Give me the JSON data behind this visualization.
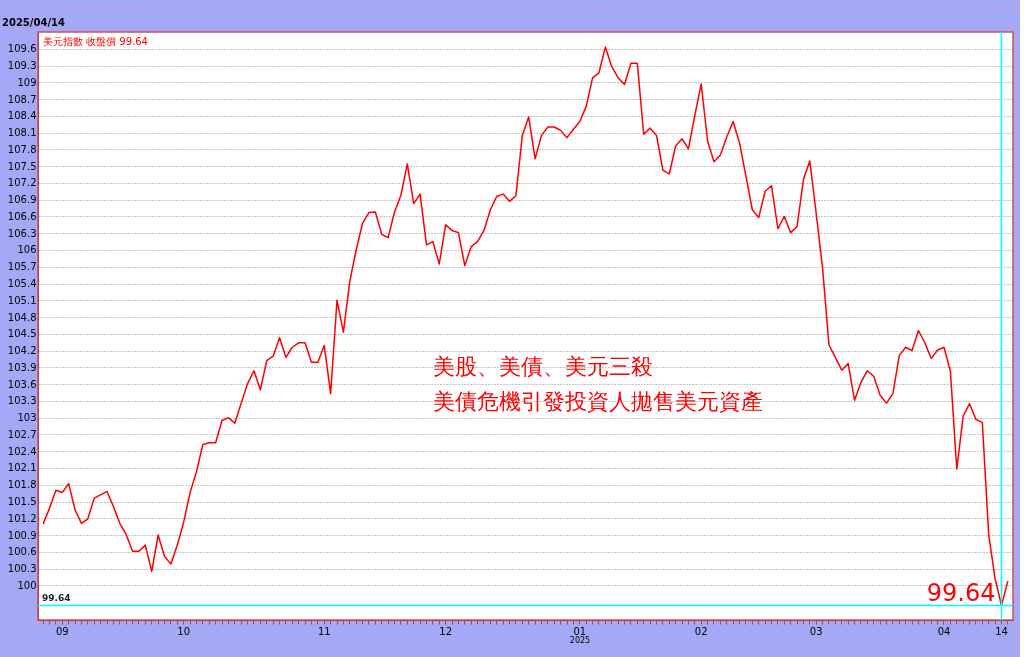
{
  "chart_data": {
    "type": "line",
    "title": "美元指數 收盤價 99.64",
    "subtitle": "2025/04/14",
    "annotations": [
      "美股、美債、美元三殺",
      "美債危機引發投資人拋售美元資產",
      "2025",
      {
        "text": "99.64",
        "x": "14",
        "y": 99.64
      }
    ],
    "categories": [
      null,
      null,
      null,
      "09",
      null,
      null,
      null,
      null,
      null,
      null,
      null,
      null,
      null,
      null,
      null,
      null,
      null,
      null,
      null,
      null,
      null,
      null,
      "10",
      null,
      null,
      null,
      null,
      null,
      null,
      null,
      null,
      null,
      null,
      null,
      null,
      null,
      null,
      null,
      null,
      null,
      null,
      null,
      null,
      null,
      "11",
      null,
      null,
      null,
      null,
      null,
      null,
      null,
      null,
      null,
      null,
      null,
      null,
      null,
      null,
      null,
      null,
      null,
      null,
      "12",
      null,
      null,
      null,
      null,
      null,
      null,
      null,
      null,
      null,
      null,
      null,
      null,
      null,
      null,
      null,
      null,
      null,
      null,
      null,
      null,
      "01",
      null,
      null,
      null,
      null,
      null,
      null,
      null,
      null,
      null,
      null,
      null,
      null,
      null,
      null,
      null,
      null,
      null,
      null,
      "02",
      null,
      null,
      null,
      null,
      null,
      null,
      null,
      null,
      null,
      null,
      null,
      null,
      null,
      null,
      null,
      null,
      null,
      "03",
      null,
      null,
      null,
      null,
      null,
      null,
      null,
      null,
      null,
      null,
      null,
      null,
      null,
      null,
      null,
      null,
      null,
      null,
      null,
      "04",
      null,
      null,
      null,
      null,
      null,
      null,
      null,
      null,
      "14",
      null
    ],
    "series": [
      {
        "color": "#ff0000",
        "values": [
          101.1,
          101.38,
          101.7,
          101.66,
          101.82,
          101.35,
          101.11,
          101.19,
          101.56,
          101.62,
          101.68,
          101.41,
          101.11,
          100.91,
          100.61,
          100.61,
          100.72,
          100.25,
          100.9,
          100.52,
          100.38,
          100.72,
          101.13,
          101.66,
          102.03,
          102.52,
          102.55,
          102.55,
          102.95,
          103.0,
          102.9,
          103.26,
          103.61,
          103.84,
          103.5,
          104.02,
          104.1,
          104.43,
          104.08,
          104.26,
          104.34,
          104.34,
          103.99,
          103.99,
          104.29,
          103.43,
          105.1,
          104.53,
          105.44,
          106.0,
          106.48,
          106.67,
          106.68,
          106.28,
          106.22,
          106.68,
          106.98,
          107.54,
          106.83,
          107.0,
          106.09,
          106.15,
          105.75,
          106.45,
          106.35,
          106.31,
          105.72,
          106.06,
          106.15,
          106.35,
          106.72,
          106.96,
          107.0,
          106.87,
          106.97,
          108.05,
          108.38,
          107.63,
          108.05,
          108.2,
          108.2,
          108.14,
          108.01,
          108.16,
          108.3,
          108.57,
          109.08,
          109.17,
          109.63,
          109.28,
          109.08,
          108.96,
          109.34,
          109.34,
          108.07,
          108.18,
          108.05,
          107.43,
          107.36,
          107.86,
          107.99,
          107.81,
          108.41,
          108.97,
          107.95,
          107.58,
          107.7,
          108.02,
          108.3,
          107.91,
          107.32,
          106.72,
          106.58,
          107.05,
          107.15,
          106.38,
          106.6,
          106.31,
          106.42,
          107.26,
          107.59,
          106.65,
          105.67,
          104.3,
          104.08,
          103.85,
          103.97,
          103.31,
          103.63,
          103.84,
          103.74,
          103.4,
          103.26,
          103.43,
          104.11,
          104.26,
          104.2,
          104.56,
          104.34,
          104.06,
          104.21,
          104.26,
          103.83,
          102.08,
          103.03,
          103.25,
          102.97,
          102.91,
          100.9,
          100.12,
          99.64,
          100.08
        ]
      }
    ],
    "ylim": [
      99.38,
      109.9
    ],
    "yticks": [
      100,
      100.3,
      100.6,
      100.9,
      101.2,
      101.5,
      101.8,
      102.1,
      102.4,
      102.7,
      103,
      103.3,
      103.6,
      103.9,
      104.2,
      104.5,
      104.8,
      105.1,
      105.4,
      105.7,
      106,
      106.3,
      106.6,
      106.9,
      107.2,
      107.5,
      107.8,
      108.1,
      108.4,
      108.7,
      109,
      109.3,
      109.6
    ],
    "grid": "y",
    "line_style": "solid",
    "ref_lines": [
      {
        "axis": "y",
        "value": 99.64,
        "label": "99.64",
        "color": "#00ffff"
      },
      {
        "axis": "x",
        "value": "14",
        "color": "#00ffff"
      }
    ]
  }
}
